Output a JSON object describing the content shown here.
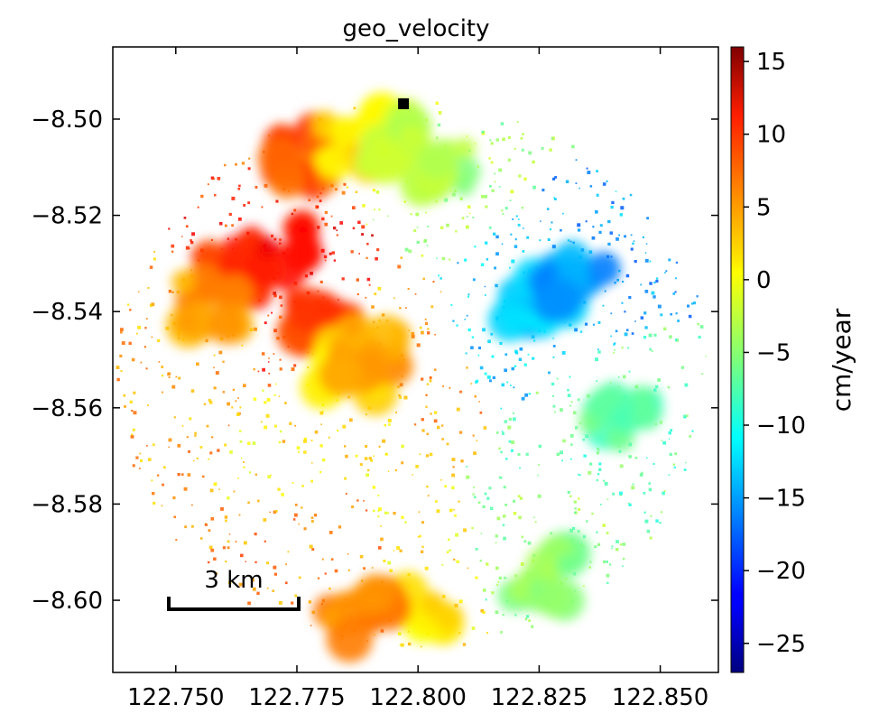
{
  "chart_data": {
    "type": "heatmap",
    "title": "geo_velocity",
    "x_ticks": [
      122.75,
      122.775,
      122.8,
      122.825,
      122.85
    ],
    "x_tick_labels": [
      "122.750",
      "122.775",
      "122.800",
      "122.825",
      "122.850"
    ],
    "y_ticks": [
      -8.5,
      -8.52,
      -8.54,
      -8.56,
      -8.58,
      -8.6
    ],
    "y_tick_labels": [
      "−8.50",
      "−8.52",
      "−8.54",
      "−8.56",
      "−8.58",
      "−8.60"
    ],
    "xlim": [
      122.737,
      122.862
    ],
    "ylim": [
      -8.615,
      -8.485
    ],
    "colorbar": {
      "label": "cm/year",
      "vmin": -27,
      "vmax": 16,
      "ticks": [
        15,
        10,
        5,
        0,
        -5,
        -10,
        -15,
        -20,
        -25
      ],
      "tick_labels": [
        "15",
        "10",
        "5",
        "0",
        "−5",
        "−10",
        "−15",
        "−20",
        "−25"
      ],
      "colormap": "jet"
    },
    "scale_bar_label": "3 km",
    "reference_point": {
      "lon": 122.797,
      "lat": -8.4968
    },
    "velocity_regions": [
      {
        "lon": 122.762,
        "lat": -8.531,
        "value": 9
      },
      {
        "lon": 122.772,
        "lat": -8.527,
        "value": 10
      },
      {
        "lon": 122.757,
        "lat": -8.538,
        "value": 4
      },
      {
        "lon": 122.78,
        "lat": -8.543,
        "value": 8
      },
      {
        "lon": 122.785,
        "lat": -8.552,
        "value": 1
      },
      {
        "lon": 122.79,
        "lat": -8.549,
        "value": 4
      },
      {
        "lon": 122.777,
        "lat": -8.508,
        "value": 7
      },
      {
        "lon": 122.787,
        "lat": -8.504,
        "value": 1
      },
      {
        "lon": 122.796,
        "lat": -8.505,
        "value": -2
      },
      {
        "lon": 122.805,
        "lat": -8.509,
        "value": -4
      },
      {
        "lon": 122.825,
        "lat": -8.537,
        "value": -13
      },
      {
        "lon": 122.832,
        "lat": -8.534,
        "value": -15
      },
      {
        "lon": 122.842,
        "lat": -8.562,
        "value": -7
      },
      {
        "lon": 122.826,
        "lat": -8.595,
        "value": -5
      },
      {
        "lon": 122.8,
        "lat": -8.601,
        "value": 1
      },
      {
        "lon": 122.788,
        "lat": -8.603,
        "value": 5
      }
    ]
  }
}
